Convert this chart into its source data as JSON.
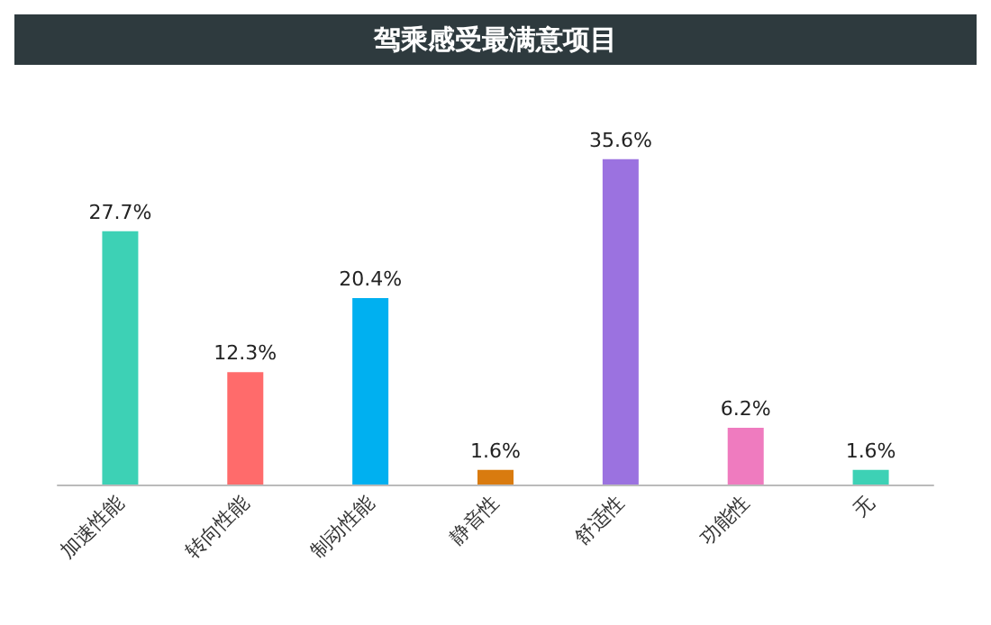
{
  "chart_data": {
    "type": "bar",
    "title": "驾乘感受最满意项目",
    "categories": [
      "加速性能",
      "转向性能",
      "制动性能",
      "静音性",
      "舒适性",
      "功能性",
      "无"
    ],
    "values": [
      27.7,
      12.3,
      20.4,
      1.6,
      35.6,
      6.2,
      1.6
    ],
    "colors": [
      "#3dd1b5",
      "#ff6b6b",
      "#00b0f0",
      "#d97b0f",
      "#9b72e0",
      "#ef7bbf",
      "#3dd1b5"
    ],
    "value_labels": [
      "27.7%",
      "12.3%",
      "20.4%",
      "1.6%",
      "35.6%",
      "6.2%",
      "1.6%"
    ]
  }
}
